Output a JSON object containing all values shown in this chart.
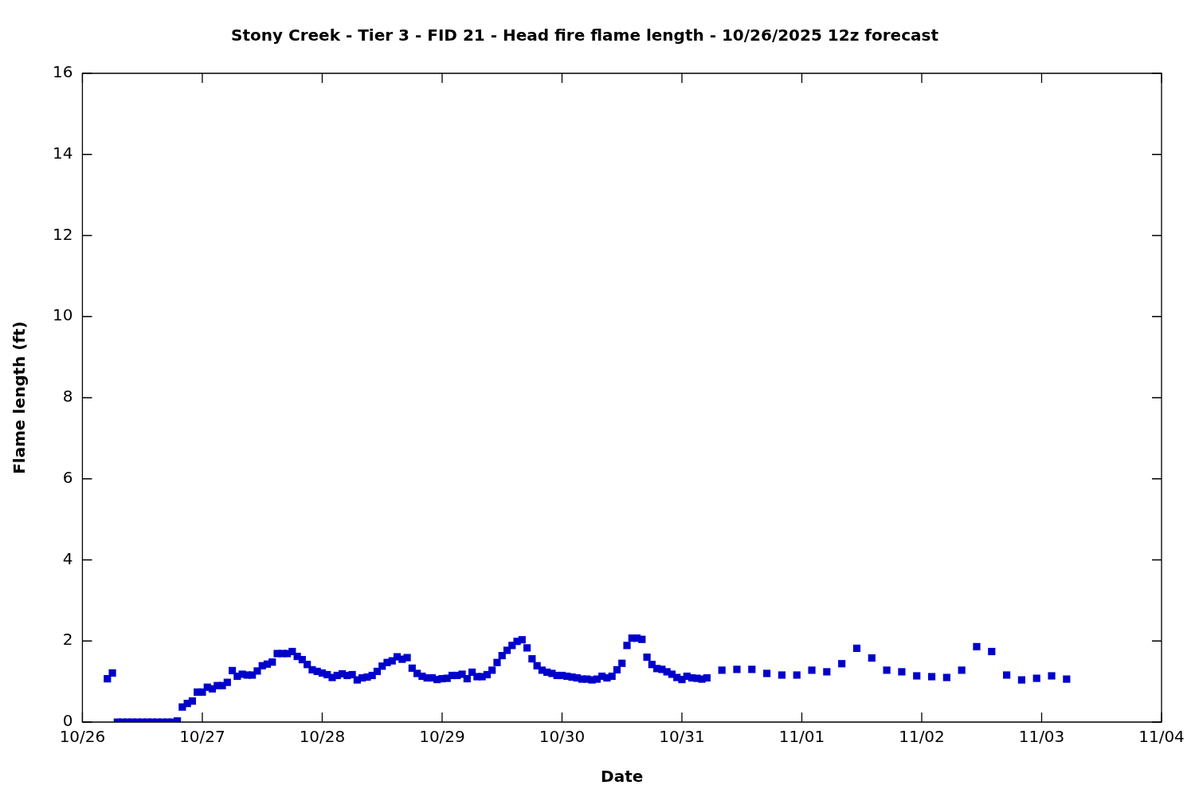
{
  "chart_data": {
    "type": "scatter",
    "title": "Stony Creek - Tier 3 - FID 21 - Head fire flame length - 10/26/2025 12z forecast",
    "xlabel": "Date",
    "ylabel": "Flame length (ft)",
    "x": [
      "2025-10-26T05:00",
      "2025-10-26T06:00",
      "2025-10-26T07:00",
      "2025-10-26T08:00",
      "2025-10-26T09:00",
      "2025-10-26T10:00",
      "2025-10-26T11:00",
      "2025-10-26T12:00",
      "2025-10-26T13:00",
      "2025-10-26T14:00",
      "2025-10-26T15:00",
      "2025-10-26T16:00",
      "2025-10-26T17:00",
      "2025-10-26T18:00",
      "2025-10-26T19:00",
      "2025-10-26T20:00",
      "2025-10-26T21:00",
      "2025-10-26T22:00",
      "2025-10-26T23:00",
      "2025-10-27T00:00",
      "2025-10-27T01:00",
      "2025-10-27T02:00",
      "2025-10-27T03:00",
      "2025-10-27T04:00",
      "2025-10-27T05:00",
      "2025-10-27T06:00",
      "2025-10-27T07:00",
      "2025-10-27T08:00",
      "2025-10-27T09:00",
      "2025-10-27T10:00",
      "2025-10-27T11:00",
      "2025-10-27T12:00",
      "2025-10-27T13:00",
      "2025-10-27T14:00",
      "2025-10-27T15:00",
      "2025-10-27T16:00",
      "2025-10-27T17:00",
      "2025-10-27T18:00",
      "2025-10-27T19:00",
      "2025-10-27T20:00",
      "2025-10-27T21:00",
      "2025-10-27T22:00",
      "2025-10-27T23:00",
      "2025-10-28T00:00",
      "2025-10-28T01:00",
      "2025-10-28T02:00",
      "2025-10-28T03:00",
      "2025-10-28T04:00",
      "2025-10-28T05:00",
      "2025-10-28T06:00",
      "2025-10-28T07:00",
      "2025-10-28T08:00",
      "2025-10-28T09:00",
      "2025-10-28T10:00",
      "2025-10-28T11:00",
      "2025-10-28T12:00",
      "2025-10-28T13:00",
      "2025-10-28T14:00",
      "2025-10-28T15:00",
      "2025-10-28T16:00",
      "2025-10-28T17:00",
      "2025-10-28T18:00",
      "2025-10-28T19:00",
      "2025-10-28T20:00",
      "2025-10-28T21:00",
      "2025-10-28T22:00",
      "2025-10-28T23:00",
      "2025-10-29T00:00",
      "2025-10-29T01:00",
      "2025-10-29T02:00",
      "2025-10-29T03:00",
      "2025-10-29T04:00",
      "2025-10-29T05:00",
      "2025-10-29T06:00",
      "2025-10-29T07:00",
      "2025-10-29T08:00",
      "2025-10-29T09:00",
      "2025-10-29T10:00",
      "2025-10-29T11:00",
      "2025-10-29T12:00",
      "2025-10-29T13:00",
      "2025-10-29T14:00",
      "2025-10-29T15:00",
      "2025-10-29T16:00",
      "2025-10-29T17:00",
      "2025-10-29T18:00",
      "2025-10-29T19:00",
      "2025-10-29T20:00",
      "2025-10-29T21:00",
      "2025-10-29T22:00",
      "2025-10-29T23:00",
      "2025-10-30T00:00",
      "2025-10-30T01:00",
      "2025-10-30T02:00",
      "2025-10-30T03:00",
      "2025-10-30T04:00",
      "2025-10-30T05:00",
      "2025-10-30T06:00",
      "2025-10-30T07:00",
      "2025-10-30T08:00",
      "2025-10-30T09:00",
      "2025-10-30T10:00",
      "2025-10-30T11:00",
      "2025-10-30T12:00",
      "2025-10-30T13:00",
      "2025-10-30T14:00",
      "2025-10-30T15:00",
      "2025-10-30T16:00",
      "2025-10-30T17:00",
      "2025-10-30T18:00",
      "2025-10-30T19:00",
      "2025-10-30T20:00",
      "2025-10-30T21:00",
      "2025-10-30T22:00",
      "2025-10-30T23:00",
      "2025-10-31T00:00",
      "2025-10-31T01:00",
      "2025-10-31T02:00",
      "2025-10-31T03:00",
      "2025-10-31T04:00",
      "2025-10-31T05:00",
      "2025-10-31T08:00",
      "2025-10-31T11:00",
      "2025-10-31T14:00",
      "2025-10-31T17:00",
      "2025-10-31T20:00",
      "2025-10-31T23:00",
      "2025-11-01T02:00",
      "2025-11-01T05:00",
      "2025-11-01T08:00",
      "2025-11-01T11:00",
      "2025-11-01T14:00",
      "2025-11-01T17:00",
      "2025-11-01T20:00",
      "2025-11-01T23:00",
      "2025-11-02T02:00",
      "2025-11-02T05:00",
      "2025-11-02T08:00",
      "2025-11-02T11:00",
      "2025-11-02T14:00",
      "2025-11-02T17:00",
      "2025-11-02T20:00",
      "2025-11-02T23:00",
      "2025-11-03T02:00",
      "2025-11-03T05:00"
    ],
    "series": [
      {
        "color": "#0000cc",
        "values": [
          1.07,
          1.21,
          0,
          0,
          0,
          0,
          0,
          0,
          0,
          0,
          0,
          0,
          0,
          0,
          0.03,
          0.37,
          0.46,
          0.52,
          0.74,
          0.74,
          0.86,
          0.82,
          0.9,
          0.9,
          0.98,
          1.27,
          1.13,
          1.18,
          1.16,
          1.16,
          1.26,
          1.39,
          1.43,
          1.48,
          1.69,
          1.69,
          1.69,
          1.74,
          1.62,
          1.54,
          1.42,
          1.29,
          1.25,
          1.21,
          1.17,
          1.1,
          1.15,
          1.19,
          1.15,
          1.17,
          1.04,
          1.09,
          1.11,
          1.15,
          1.25,
          1.38,
          1.47,
          1.51,
          1.61,
          1.55,
          1.59,
          1.33,
          1.2,
          1.13,
          1.09,
          1.09,
          1.05,
          1.07,
          1.08,
          1.15,
          1.15,
          1.18,
          1.07,
          1.23,
          1.12,
          1.12,
          1.17,
          1.28,
          1.47,
          1.64,
          1.77,
          1.89,
          1.99,
          2.03,
          1.83,
          1.56,
          1.39,
          1.28,
          1.23,
          1.2,
          1.15,
          1.15,
          1.13,
          1.11,
          1.09,
          1.06,
          1.06,
          1.04,
          1.06,
          1.13,
          1.09,
          1.13,
          1.29,
          1.45,
          1.89,
          2.07,
          2.07,
          2.04,
          1.6,
          1.42,
          1.32,
          1.3,
          1.24,
          1.18,
          1.1,
          1.05,
          1.13,
          1.09,
          1.08,
          1.06,
          1.09,
          1.28,
          1.3,
          1.3,
          1.2,
          1.16,
          1.16,
          1.28,
          1.24,
          1.44,
          1.82,
          1.58,
          1.28,
          1.24,
          1.14,
          1.12,
          1.1,
          1.28,
          1.86,
          1.74,
          1.16,
          1.04,
          1.08,
          1.14,
          1.06
        ]
      }
    ],
    "xlim": [
      "2025-10-26",
      "2025-11-04"
    ],
    "xticks": [
      {
        "value": "2025-10-26",
        "label": "10/26"
      },
      {
        "value": "2025-10-27",
        "label": "10/27"
      },
      {
        "value": "2025-10-28",
        "label": "10/28"
      },
      {
        "value": "2025-10-29",
        "label": "10/29"
      },
      {
        "value": "2025-10-30",
        "label": "10/30"
      },
      {
        "value": "2025-10-31",
        "label": "10/31"
      },
      {
        "value": "2025-11-01",
        "label": "11/01"
      },
      {
        "value": "2025-11-02",
        "label": "11/02"
      },
      {
        "value": "2025-11-03",
        "label": "11/03"
      },
      {
        "value": "2025-11-04",
        "label": "11/04"
      }
    ],
    "ylim": [
      0,
      16
    ],
    "yticks": [
      0,
      2,
      4,
      6,
      8,
      10,
      12,
      14,
      16
    ],
    "grid": false,
    "legend": false,
    "marker": "square"
  }
}
